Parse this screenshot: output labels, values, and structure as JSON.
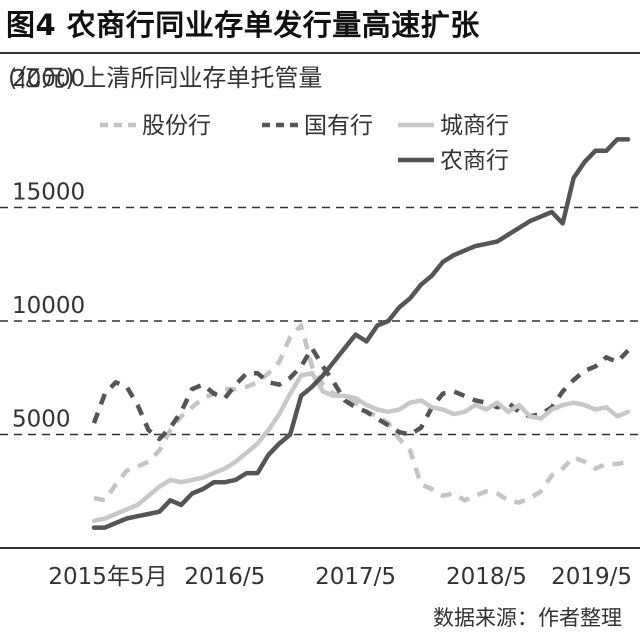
{
  "figure": {
    "title": "图4  农商行同业存单发行量高速扩张",
    "subtitle": "(亿元) 上清所同业存单托管量",
    "source": "数据来源：作者整理"
  },
  "chart_data": {
    "type": "line",
    "x_start": "2015-05",
    "x_step": "month",
    "x": [
      "2015-05",
      "2015-06",
      "2015-07",
      "2015-08",
      "2015-09",
      "2015-10",
      "2015-11",
      "2015-12",
      "2016-01",
      "2016-02",
      "2016-03",
      "2016-04",
      "2016-05",
      "2016-06",
      "2016-07",
      "2016-08",
      "2016-09",
      "2016-10",
      "2016-11",
      "2016-12",
      "2017-01",
      "2017-02",
      "2017-03",
      "2017-04",
      "2017-05",
      "2017-06",
      "2017-07",
      "2017-08",
      "2017-09",
      "2017-10",
      "2017-11",
      "2017-12",
      "2018-01",
      "2018-02",
      "2018-03",
      "2018-04",
      "2018-05",
      "2018-06",
      "2018-07",
      "2018-08",
      "2018-09",
      "2018-10",
      "2018-11",
      "2018-12",
      "2019-01",
      "2019-02",
      "2019-03",
      "2019-04",
      "2019-05",
      "2019-06"
    ],
    "xticks": [
      {
        "x": "2015-05",
        "label": "2015年5月"
      },
      {
        "x": "2016-05",
        "label": "2016/5"
      },
      {
        "x": "2017-05",
        "label": "2017/5"
      },
      {
        "x": "2018-05",
        "label": "2018/5"
      },
      {
        "x": "2019-05",
        "label": "2019/5"
      }
    ],
    "yticks": [
      5000,
      10000,
      15000,
      20000
    ],
    "ylim": [
      0,
      20000
    ],
    "grid": "horizontal dashed",
    "legend": "top",
    "series": [
      {
        "name": "股份行",
        "style": "dashed",
        "color": "#c4c4c4",
        "values": [
          2200,
          2100,
          2800,
          3400,
          3600,
          3800,
          4300,
          5200,
          5800,
          6200,
          6600,
          6800,
          7000,
          7000,
          7100,
          7300,
          7700,
          8200,
          9300,
          9800,
          8000,
          7200,
          6800,
          6600,
          6400,
          6000,
          5800,
          5500,
          4800,
          4300,
          2800,
          2600,
          2300,
          2400,
          2100,
          2300,
          2500,
          2400,
          2100,
          2000,
          2200,
          2500,
          3200,
          3500,
          4000,
          3800,
          3500,
          3700,
          3700,
          3800
        ]
      },
      {
        "name": "国有行",
        "style": "dashed",
        "color": "#555555",
        "values": [
          5500,
          6800,
          7300,
          7100,
          6300,
          5200,
          4800,
          5300,
          6000,
          7000,
          7200,
          6800,
          6600,
          7200,
          7700,
          7700,
          7300,
          7200,
          7500,
          8000,
          8800,
          8000,
          7300,
          6500,
          6200,
          6000,
          5700,
          5400,
          5100,
          5000,
          5300,
          6200,
          6800,
          6900,
          6700,
          6500,
          6400,
          6200,
          6400,
          6000,
          5800,
          5900,
          6200,
          6900,
          7400,
          7800,
          8000,
          8400,
          8200,
          8700
        ]
      },
      {
        "name": "城商行",
        "style": "solid",
        "color": "#c8c8c8",
        "values": [
          1200,
          1300,
          1500,
          1700,
          1900,
          2300,
          2700,
          3000,
          2900,
          3000,
          3100,
          3300,
          3500,
          3800,
          4200,
          4600,
          5200,
          5900,
          6800,
          7600,
          7700,
          6900,
          6700,
          6700,
          6600,
          6300,
          6100,
          6000,
          6100,
          6400,
          6500,
          6200,
          6100,
          5900,
          6000,
          6300,
          6100,
          6400,
          6000,
          6300,
          5800,
          5700,
          6100,
          6300,
          6400,
          6300,
          6100,
          6200,
          5800,
          6000
        ]
      },
      {
        "name": "农商行",
        "style": "solid",
        "color": "#555555",
        "values": [
          900,
          900,
          1100,
          1300,
          1400,
          1500,
          1600,
          2100,
          1900,
          2400,
          2600,
          2900,
          2900,
          3000,
          3300,
          3300,
          4100,
          4600,
          5000,
          6700,
          7100,
          7600,
          8200,
          8800,
          9400,
          9100,
          9800,
          10000,
          10600,
          11000,
          11600,
          12000,
          12600,
          12900,
          13100,
          13300,
          13400,
          13500,
          13800,
          14100,
          14400,
          14600,
          14800,
          14300,
          16300,
          17000,
          17500,
          17500,
          18000,
          18000
        ]
      }
    ]
  }
}
